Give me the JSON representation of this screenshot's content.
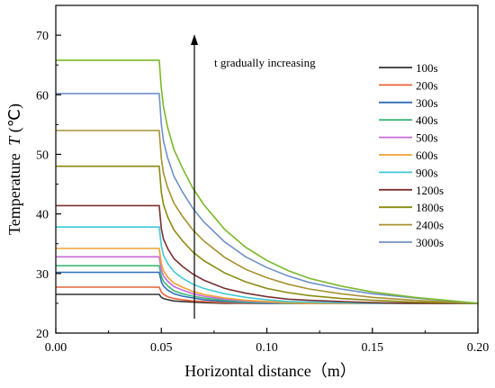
{
  "chart_data": {
    "type": "line",
    "xlabel": "Horizontal distance（m）",
    "ylabel": "Temperature",
    "ylabel_symbol": "T",
    "ylabel_unit": "(℃)",
    "xlim": [
      0.0,
      0.2
    ],
    "ylim": [
      20,
      75
    ],
    "xticks": [
      "0.00",
      "0.05",
      "0.10",
      "0.15",
      "0.20"
    ],
    "yticks": [
      "20",
      "30",
      "40",
      "50",
      "60",
      "70"
    ],
    "grid": false,
    "legend_position": "right",
    "annotation": "t gradually increasing",
    "x": [
      0.0,
      0.049,
      0.05,
      0.051,
      0.053,
      0.056,
      0.06,
      0.065,
      0.07,
      0.08,
      0.09,
      0.1,
      0.11,
      0.12,
      0.135,
      0.15,
      0.17,
      0.2
    ],
    "series": [
      {
        "name": "100s",
        "color": "#333333",
        "values": [
          26.5,
          26.5,
          26.0,
          25.8,
          25.6,
          25.4,
          25.3,
          25.2,
          25.1,
          25.0,
          25.0,
          25.0,
          25.0,
          25.0,
          25.0,
          25.0,
          25.0,
          25.0
        ]
      },
      {
        "name": "200s",
        "color": "#e8633a",
        "values": [
          27.7,
          27.7,
          26.9,
          26.5,
          26.1,
          25.8,
          25.6,
          25.4,
          25.3,
          25.1,
          25.0,
          25.0,
          25.0,
          25.0,
          25.0,
          25.0,
          25.0,
          25.0
        ]
      },
      {
        "name": "300s",
        "color": "#2f6db5",
        "values": [
          30.2,
          30.2,
          28.6,
          27.9,
          27.2,
          26.6,
          26.2,
          25.9,
          25.6,
          25.3,
          25.1,
          25.0,
          25.0,
          25.0,
          25.0,
          25.0,
          25.0,
          25.0
        ]
      },
      {
        "name": "400s",
        "color": "#3cb878",
        "values": [
          31.3,
          31.3,
          29.5,
          28.7,
          27.9,
          27.1,
          26.6,
          26.2,
          25.9,
          25.5,
          25.2,
          25.1,
          25.0,
          25.0,
          25.0,
          25.0,
          25.0,
          25.0
        ]
      },
      {
        "name": "500s",
        "color": "#c86ad8",
        "values": [
          32.8,
          32.8,
          30.6,
          29.6,
          28.7,
          27.8,
          27.2,
          26.6,
          26.2,
          25.7,
          25.4,
          25.2,
          25.1,
          25.0,
          25.0,
          25.0,
          25.0,
          25.0
        ]
      },
      {
        "name": "600s",
        "color": "#f0a030",
        "values": [
          34.2,
          34.2,
          31.6,
          30.5,
          29.4,
          28.4,
          27.7,
          27.0,
          26.5,
          25.9,
          25.5,
          25.3,
          25.1,
          25.0,
          25.0,
          25.0,
          25.0,
          25.0
        ]
      },
      {
        "name": "900s",
        "color": "#40c8d8",
        "values": [
          37.8,
          37.8,
          34.6,
          33.1,
          31.7,
          30.3,
          29.2,
          28.2,
          27.5,
          26.6,
          26.0,
          25.6,
          25.3,
          25.2,
          25.1,
          25.0,
          25.0,
          25.0
        ]
      },
      {
        "name": "1200s",
        "color": "#7a3030",
        "values": [
          41.4,
          41.4,
          37.5,
          35.8,
          34.2,
          32.5,
          31.2,
          29.9,
          28.9,
          27.5,
          26.7,
          26.1,
          25.7,
          25.5,
          25.3,
          25.1,
          25.0,
          25.0
        ]
      },
      {
        "name": "1800s",
        "color": "#8a8a10",
        "values": [
          48.0,
          48.0,
          43.6,
          41.6,
          39.5,
          37.3,
          35.5,
          33.6,
          32.2,
          30.1,
          28.6,
          27.5,
          26.8,
          26.3,
          25.8,
          25.5,
          25.2,
          25.0
        ]
      },
      {
        "name": "2400s",
        "color": "#a89030",
        "values": [
          54.0,
          54.0,
          49.3,
          46.9,
          44.4,
          41.8,
          39.6,
          37.3,
          35.5,
          32.7,
          30.7,
          29.3,
          28.2,
          27.4,
          26.6,
          26.0,
          25.5,
          25.0
        ]
      },
      {
        "name": "3000s",
        "color": "#7090c8",
        "values": [
          60.2,
          60.2,
          55.0,
          52.3,
          49.4,
          46.3,
          43.7,
          40.9,
          38.7,
          35.3,
          32.8,
          31.0,
          29.6,
          28.5,
          27.4,
          26.6,
          25.9,
          25.0
        ]
      },
      {
        "color": "#7ab828",
        "values": [
          65.8,
          65.8,
          61.0,
          58.0,
          54.5,
          50.8,
          47.7,
          44.3,
          41.6,
          37.4,
          34.4,
          32.2,
          30.5,
          29.2,
          27.9,
          26.9,
          26.0,
          25.0
        ]
      }
    ]
  }
}
